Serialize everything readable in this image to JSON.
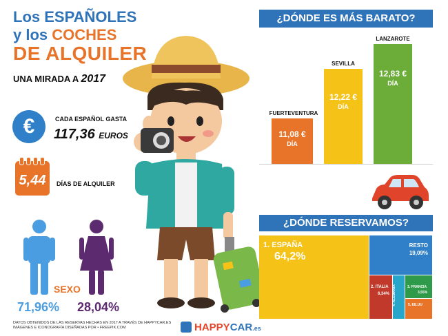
{
  "title": {
    "line1": "Los ESPAÑOLES",
    "line2_a": "y los ",
    "line2_b": "COCHES",
    "line3": "DE ALQUILER"
  },
  "subtitle": {
    "text": "UNA MIRADA A ",
    "year": "2017"
  },
  "spend": {
    "icon": "euro-icon",
    "symbol": "€",
    "label": "CADA ESPAÑOL GASTA",
    "amount": "117,36",
    "unit": "EUROS"
  },
  "days": {
    "icon": "calendar-icon",
    "value": "5,44",
    "label": "DÍAS DE ALQUILER"
  },
  "gender": {
    "label": "SEXO",
    "male": {
      "icon": "male-icon",
      "pct": "71,96%",
      "color": "#4a9de0"
    },
    "female": {
      "icon": "female-icon",
      "pct": "28,04%",
      "color": "#5c2a6e"
    }
  },
  "cheap": {
    "heading": "¿DÓNDE ES MÁS BARATO?",
    "bars": [
      {
        "label": "FUERTEVENTURA",
        "value": "11,08 €",
        "unit": "DÍA",
        "color": "#e8742a"
      },
      {
        "label": "SEVILLA",
        "value": "12,22 €",
        "unit": "DÍA",
        "color": "#f5c218"
      },
      {
        "label": "LANZAROTE",
        "value": "12,83 €",
        "unit": "DÍA",
        "color": "#6cad3a"
      }
    ]
  },
  "chart_data": {
    "type": "bar",
    "title": "¿DÓNDE ES MÁS BARATO?",
    "categories": [
      "FUERTEVENTURA",
      "SEVILLA",
      "LANZAROTE"
    ],
    "values": [
      11.08,
      12.22,
      12.83
    ]
  },
  "book": {
    "heading": "¿DÓNDE RESERVAMOS?",
    "cells": [
      {
        "label": "1. ESPAÑA",
        "pct": "64,2%",
        "color": "#f5c218"
      },
      {
        "label": "RESTO",
        "pct": "19,09%",
        "color": "#2f80c9"
      },
      {
        "label": "2. ITALIA",
        "pct": "6,34%",
        "color": "#c0392b"
      },
      {
        "label": "4. ALEMANIA",
        "pct": "",
        "color": "#27a6c9"
      },
      {
        "label": "3. FRANCIA",
        "pct": "3,55%",
        "color": "#2e9a4a"
      },
      {
        "label": "5. EE.UU",
        "pct": "",
        "color": "#e8742a"
      }
    ]
  },
  "footer": {
    "line1": "DATOS OBTENIDOS DE LAS RESERVAS HECHAS EN 2017 A TRAVÉS DE HAPPYCAR.ES",
    "line2": "IMÁGENES E ICONOGRAFÍA DISEÑADAS POR • FREEPIK.COM"
  },
  "brand": {
    "happy": "HAPPY",
    "car": "CAR",
    "tld": ".es"
  }
}
